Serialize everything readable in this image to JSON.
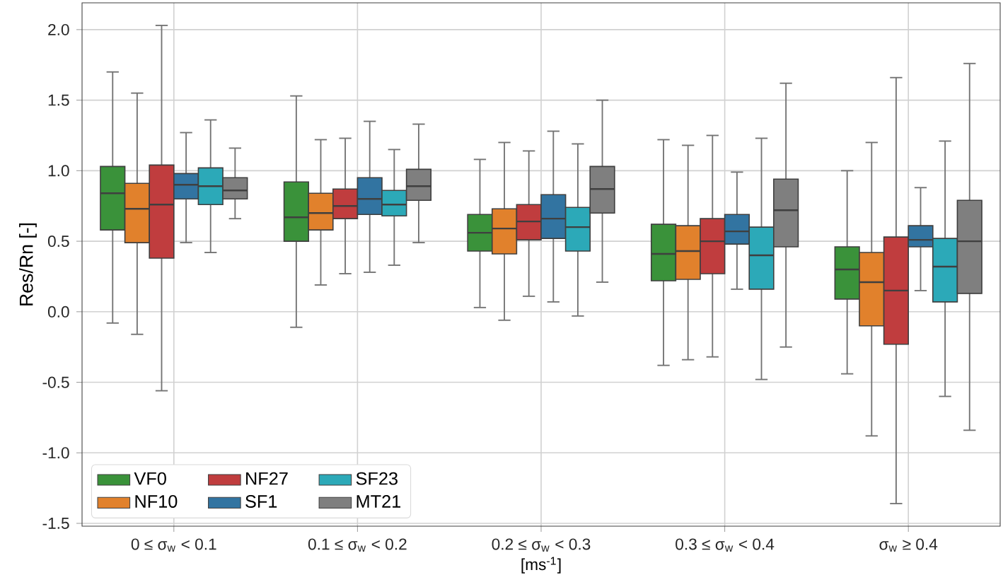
{
  "chart_data": {
    "type": "box",
    "xlabel": "[ms$^{-1}$]",
    "ylabel": "Res/Rn [-]",
    "categories": [
      "0 ≤ σ$_{w}$ < 0.1",
      "0.1 ≤ σ$_{w}$ < 0.2",
      "0.2 ≤ σ$_{w}$ < 0.3",
      "0.3 ≤ σ$_{w}$ < 0.4",
      "σ$_{w}$ ≥ 0.4"
    ],
    "ylim": [
      -1.52,
      2.19
    ],
    "yticks": [
      {
        "value": -1.5,
        "label": "-1.5"
      },
      {
        "value": -1.0,
        "label": "-1.0"
      },
      {
        "value": -0.5,
        "label": "-0.5"
      },
      {
        "value": 0,
        "label": "0.0"
      },
      {
        "value": 0.5,
        "label": "0.5"
      },
      {
        "value": 1.0,
        "label": "1.0"
      },
      {
        "value": 1.5,
        "label": "1.5"
      },
      {
        "value": 2.0,
        "label": "2.0"
      }
    ],
    "grid": true,
    "legend": "bottom left",
    "series": [
      {
        "name": "VF0",
        "color": "#3a923a",
        "boxes": [
          {
            "low": -0.08,
            "q1": 0.58,
            "median": 0.84,
            "q3": 1.03,
            "high": 1.7
          },
          {
            "low": -0.11,
            "q1": 0.5,
            "median": 0.67,
            "q3": 0.92,
            "high": 1.53
          },
          {
            "low": 0.03,
            "q1": 0.43,
            "median": 0.56,
            "q3": 0.69,
            "high": 1.08
          },
          {
            "low": -0.38,
            "q1": 0.22,
            "median": 0.41,
            "q3": 0.62,
            "high": 1.22
          },
          {
            "low": -0.44,
            "q1": 0.09,
            "median": 0.3,
            "q3": 0.46,
            "high": 1.0
          }
        ]
      },
      {
        "name": "NF10",
        "color": "#e1812c",
        "boxes": [
          {
            "low": -0.16,
            "q1": 0.49,
            "median": 0.73,
            "q3": 0.91,
            "high": 1.55
          },
          {
            "low": 0.19,
            "q1": 0.58,
            "median": 0.7,
            "q3": 0.84,
            "high": 1.22
          },
          {
            "low": -0.06,
            "q1": 0.41,
            "median": 0.59,
            "q3": 0.73,
            "high": 1.2
          },
          {
            "low": -0.34,
            "q1": 0.23,
            "median": 0.43,
            "q3": 0.61,
            "high": 1.18
          },
          {
            "low": -0.88,
            "q1": -0.1,
            "median": 0.21,
            "q3": 0.42,
            "high": 1.2
          }
        ]
      },
      {
        "name": "NF27",
        "color": "#c03d3e",
        "boxes": [
          {
            "low": -0.56,
            "q1": 0.38,
            "median": 0.76,
            "q3": 1.04,
            "high": 2.03
          },
          {
            "low": 0.27,
            "q1": 0.66,
            "median": 0.75,
            "q3": 0.87,
            "high": 1.23
          },
          {
            "low": 0.11,
            "q1": 0.51,
            "median": 0.64,
            "q3": 0.76,
            "high": 1.14
          },
          {
            "low": -0.32,
            "q1": 0.27,
            "median": 0.5,
            "q3": 0.66,
            "high": 1.25
          },
          {
            "low": -1.36,
            "q1": -0.23,
            "median": 0.15,
            "q3": 0.53,
            "high": 1.66
          }
        ]
      },
      {
        "name": "SF1",
        "color": "#3274a1",
        "boxes": [
          {
            "low": 0.49,
            "q1": 0.8,
            "median": 0.9,
            "q3": 0.98,
            "high": 1.27
          },
          {
            "low": 0.28,
            "q1": 0.69,
            "median": 0.8,
            "q3": 0.95,
            "high": 1.35
          },
          {
            "low": 0.07,
            "q1": 0.52,
            "median": 0.66,
            "q3": 0.83,
            "high": 1.28
          },
          {
            "low": 0.16,
            "q1": 0.48,
            "median": 0.57,
            "q3": 0.69,
            "high": 0.99
          },
          {
            "low": 0.15,
            "q1": 0.46,
            "median": 0.51,
            "q3": 0.61,
            "high": 0.88
          }
        ]
      },
      {
        "name": "SF23",
        "color": "#2ca9b8",
        "boxes": [
          {
            "low": 0.42,
            "q1": 0.76,
            "median": 0.89,
            "q3": 1.02,
            "high": 1.36
          },
          {
            "low": 0.33,
            "q1": 0.68,
            "median": 0.76,
            "q3": 0.86,
            "high": 1.15
          },
          {
            "low": -0.03,
            "q1": 0.43,
            "median": 0.6,
            "q3": 0.74,
            "high": 1.19
          },
          {
            "low": -0.48,
            "q1": 0.16,
            "median": 0.4,
            "q3": 0.6,
            "high": 1.23
          },
          {
            "low": -0.6,
            "q1": 0.07,
            "median": 0.32,
            "q3": 0.52,
            "high": 1.21
          }
        ]
      },
      {
        "name": "MT21",
        "color": "#7f7f7f",
        "boxes": [
          {
            "low": 0.66,
            "q1": 0.8,
            "median": 0.86,
            "q3": 0.95,
            "high": 1.16
          },
          {
            "low": 0.49,
            "q1": 0.79,
            "median": 0.89,
            "q3": 1.01,
            "high": 1.33
          },
          {
            "low": 0.21,
            "q1": 0.7,
            "median": 0.87,
            "q3": 1.03,
            "high": 1.5
          },
          {
            "low": -0.25,
            "q1": 0.46,
            "median": 0.72,
            "q3": 0.94,
            "high": 1.62
          },
          {
            "low": -0.84,
            "q1": 0.13,
            "median": 0.5,
            "q3": 0.79,
            "high": 1.76
          }
        ]
      }
    ]
  }
}
